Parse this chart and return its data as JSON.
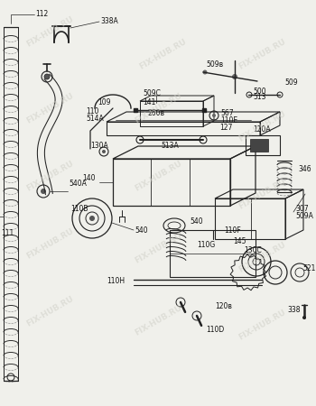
{
  "bg_color": "#f0f0eb",
  "lc": "#222222",
  "wm_color": "#d0d0c8",
  "wm_alpha": 0.55,
  "fs": 5.5,
  "fs_wm": 6.5,
  "watermarks": [
    [
      55,
      415,
      "FIX-HUB.RU",
      30
    ],
    [
      180,
      390,
      "FIX-HUB.RU",
      30
    ],
    [
      290,
      390,
      "FIX-HUB.RU",
      30
    ],
    [
      55,
      330,
      "FIX-HUB.RU",
      30
    ],
    [
      175,
      330,
      "FIX-HUB.RU",
      30
    ],
    [
      290,
      310,
      "FIX-HUB.RU",
      30
    ],
    [
      55,
      255,
      "FIX-HUB.RU",
      30
    ],
    [
      175,
      255,
      "FIX-HUB.RU",
      30
    ],
    [
      290,
      235,
      "FIX-HUB.RU",
      30
    ],
    [
      55,
      180,
      "FIX-HUB.RU",
      30
    ],
    [
      175,
      175,
      "FIX-HUB.RU",
      30
    ],
    [
      290,
      165,
      "FIX-HUB.RU",
      30
    ],
    [
      55,
      105,
      "FIX-HUB.RU",
      30
    ],
    [
      175,
      95,
      "FIX-HUB.RU",
      30
    ],
    [
      290,
      90,
      "FIX-HUB.RU",
      30
    ]
  ]
}
